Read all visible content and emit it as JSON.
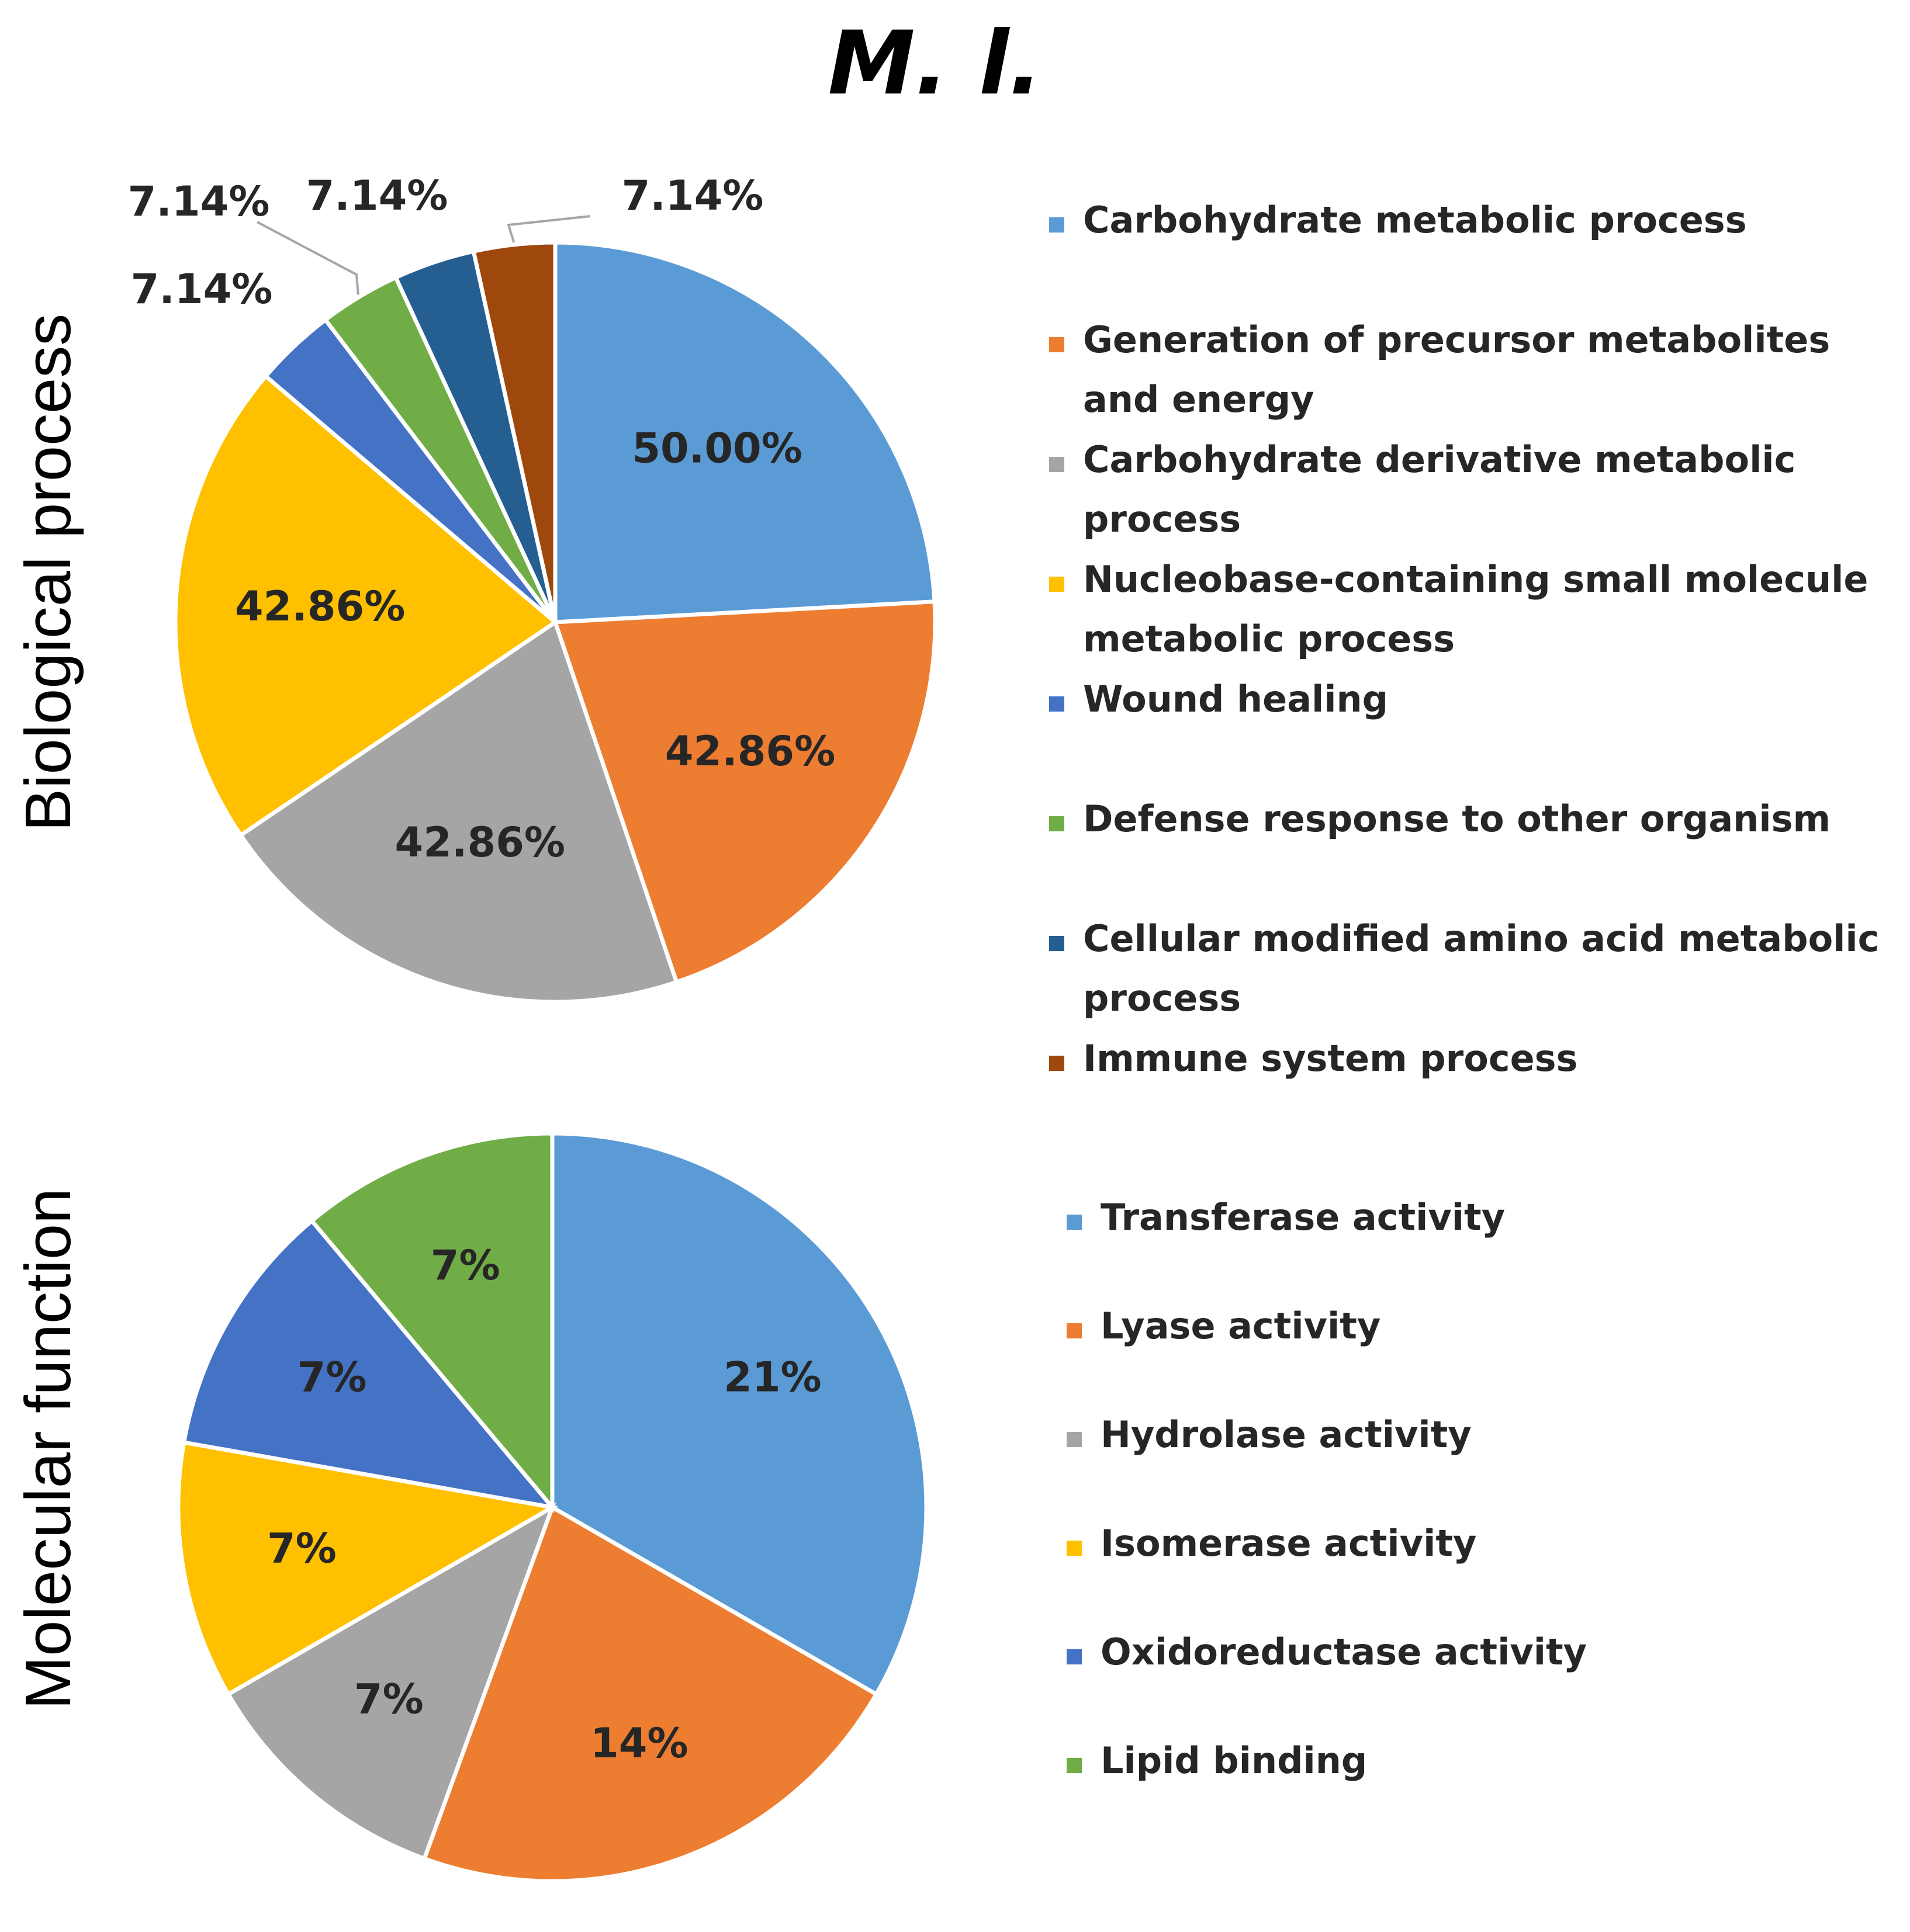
{
  "title": "M. l.",
  "chart_data": [
    {
      "type": "pie",
      "panel_label": "Biological process",
      "categories": [
        "Carbohydrate metabolic process",
        "Generation of precursor metabolites and energy",
        "Carbohydrate derivative metabolic process",
        "Nucleobase-containing small molecule metabolic process",
        "Wound healing",
        "Defense response to other organism",
        "Cellular modified amino acid metabolic process",
        "Immune system process"
      ],
      "legend_lines": [
        [
          "Carbohydrate metabolic process"
        ],
        [
          "Generation of precursor metabolites",
          "and energy"
        ],
        [
          "Carbohydrate derivative metabolic",
          "process"
        ],
        [
          "Nucleobase-containing small molecule",
          "metabolic process"
        ],
        [
          "Wound healing"
        ],
        [
          "Defense response to other organism"
        ],
        [
          "Cellular modified amino acid metabolic",
          "process"
        ],
        [
          "Immune system process"
        ]
      ],
      "values": [
        50.0,
        42.86,
        42.86,
        42.86,
        7.14,
        7.14,
        7.14,
        7.14
      ],
      "labels": [
        "50.00%",
        "42.86%",
        "42.86%",
        "42.86%",
        "7.14%",
        "7.14%",
        "7.14%",
        "7.14%"
      ],
      "colors": [
        "#5B9BD5",
        "#ED7D31",
        "#A5A5A5",
        "#FFC000",
        "#4472C4",
        "#70AD47",
        "#255E91",
        "#9E480E"
      ],
      "legend_position": "right"
    },
    {
      "type": "pie",
      "panel_label": "Molecular function",
      "categories": [
        "Transferase activity",
        "Lyase activity",
        "Hydrolase activity",
        "Isomerase activity",
        "Oxidoreductase activity",
        "Lipid binding"
      ],
      "legend_lines": [
        [
          "Transferase activity"
        ],
        [
          "Lyase activity"
        ],
        [
          "Hydrolase activity"
        ],
        [
          "Isomerase activity"
        ],
        [
          "Oxidoreductase activity"
        ],
        [
          "Lipid binding"
        ]
      ],
      "values": [
        21,
        14,
        7,
        7,
        7,
        7
      ],
      "labels": [
        "21%",
        "14%",
        "7%",
        "7%",
        "7%",
        "7%"
      ],
      "colors": [
        "#5B9BD5",
        "#ED7D31",
        "#A5A5A5",
        "#FFC000",
        "#4472C4",
        "#70AD47"
      ],
      "legend_position": "right"
    }
  ]
}
